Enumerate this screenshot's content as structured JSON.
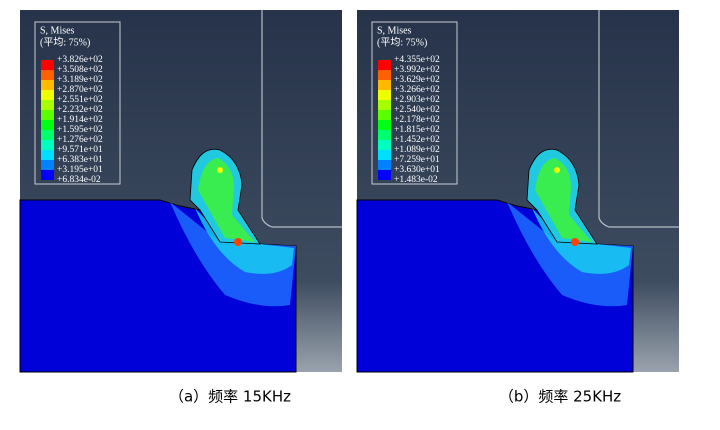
{
  "panels": [
    {
      "legend_title": "S, Mises",
      "legend_subtitle": "(平均: 75%)",
      "legend_labels": [
        "+3.826e+02",
        "+3.508e+02",
        "+3.189e+02",
        "+2.870e+02",
        "+2.551e+02",
        "+2.232e+02",
        "+1.914e+02",
        "+1.595e+02",
        "+1.276e+02",
        "+9.571e+01",
        "+6.383e+01",
        "+3.195e+01",
        "+6.834e-02"
      ],
      "caption": "（a）频率 15KHz"
    },
    {
      "legend_title": "S, Mises",
      "legend_subtitle": "(平均: 75%)",
      "legend_labels": [
        "+4.355e+02",
        "+3.992e+02",
        "+3.629e+02",
        "+3.266e+02",
        "+2.903e+02",
        "+2.540e+02",
        "+2.178e+02",
        "+1.815e+02",
        "+1.452e+02",
        "+1.089e+02",
        "+7.259e+01",
        "+3.630e+01",
        "+1.483e-02"
      ],
      "caption": "（b）频率 25KHz"
    }
  ]
}
